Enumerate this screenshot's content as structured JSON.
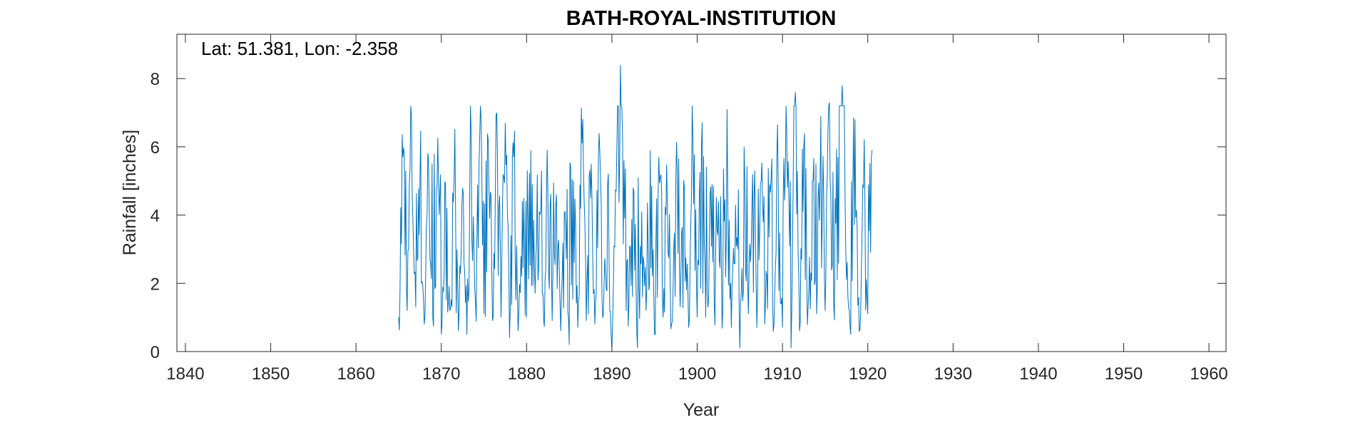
{
  "chart_data": {
    "type": "line",
    "title": "BATH-ROYAL-INSTITUTION",
    "annotation": "Lat: 51.381, Lon: -2.358",
    "xlabel": "Year",
    "ylabel": "Rainfall [inches]",
    "xlim": [
      1839,
      1962
    ],
    "ylim": [
      0,
      9.3
    ],
    "xticks": [
      1840,
      1850,
      1860,
      1870,
      1880,
      1890,
      1900,
      1910,
      1920,
      1930,
      1940,
      1950,
      1960
    ],
    "yticks": [
      0,
      2,
      4,
      6,
      8
    ],
    "line_color": "#0072BD",
    "grid": false,
    "series": [
      {
        "data_start_year": 1865.0,
        "data_end_year": 1920.5,
        "points_per_year": 12,
        "x": [
          1865.0,
          1865.5,
          1866.0,
          1866.5,
          1867.0,
          1867.5,
          1868.0,
          1868.5,
          1869.0,
          1869.5,
          1870.0,
          1870.5,
          1871.0,
          1871.5,
          1872.0,
          1872.5,
          1873.0,
          1873.5,
          1874.0,
          1874.5,
          1875.0,
          1875.5,
          1876.0,
          1876.5,
          1877.0,
          1877.5,
          1878.0,
          1878.5,
          1879.0,
          1879.5,
          1880.0,
          1880.5,
          1881.0,
          1881.5,
          1882.0,
          1882.5,
          1883.0,
          1883.5,
          1884.0,
          1884.5,
          1885.0,
          1885.5,
          1886.0,
          1886.5,
          1887.0,
          1887.5,
          1888.0,
          1888.5,
          1889.0,
          1889.5,
          1890.0,
          1890.5,
          1891.0,
          1891.5,
          1892.0,
          1892.5,
          1893.0,
          1893.5,
          1894.0,
          1894.5,
          1895.0,
          1895.5,
          1896.0,
          1896.5,
          1897.0,
          1897.5,
          1898.0,
          1898.5,
          1899.0,
          1899.5,
          1900.0,
          1900.5,
          1901.0,
          1901.5,
          1902.0,
          1902.5,
          1903.0,
          1903.5,
          1904.0,
          1904.5,
          1905.0,
          1905.5,
          1906.0,
          1906.5,
          1907.0,
          1907.5,
          1908.0,
          1908.5,
          1909.0,
          1909.5,
          1910.0,
          1910.5,
          1911.0,
          1911.5,
          1912.0,
          1912.5,
          1913.0,
          1913.5,
          1914.0,
          1914.5,
          1915.0,
          1915.5,
          1916.0,
          1916.5,
          1917.0,
          1917.5,
          1918.0,
          1918.5,
          1919.0,
          1919.5,
          1920.0,
          1920.5
        ],
        "y": [
          1.0,
          5.7,
          1.2,
          6.9,
          1.3,
          5.0,
          0.8,
          5.6,
          1.0,
          4.9,
          0.5,
          4.9,
          1.2,
          5.1,
          0.6,
          4.8,
          0.5,
          6.4,
          1.5,
          6.3,
          1.1,
          6.2,
          0.9,
          7.0,
          1.0,
          6.7,
          0.4,
          5.7,
          0.6,
          4.4,
          1.0,
          5.9,
          1.7,
          4.1,
          0.9,
          4.6,
          0.9,
          4.6,
          0.6,
          4.1,
          0.2,
          5.0,
          0.7,
          6.1,
          0.9,
          4.5,
          0.8,
          6.4,
          1.1,
          4.9,
          0.1,
          4.7,
          8.4,
          3.9,
          1.4,
          4.8,
          0.1,
          4.1,
          1.2,
          5.9,
          0.5,
          5.7,
          1.0,
          4.3,
          0.8,
          5.1,
          1.3,
          4.8,
          0.7,
          6.3,
          1.0,
          6.0,
          1.0,
          4.6,
          1.4,
          4.4,
          1.2,
          7.1,
          0.7,
          4.3,
          0.1,
          6.0,
          1.1,
          5.2,
          0.7,
          5.0,
          1.4,
          4.9,
          0.8,
          5.0,
          0.7,
          6.3,
          0.1,
          7.6,
          0.6,
          6.0,
          1.3,
          5.0,
          1.1,
          6.9,
          1.2,
          7.3,
          1.4,
          5.7,
          7.8,
          2.1,
          0.5,
          6.8,
          0.6,
          4.8,
          1.1,
          5.9
        ]
      }
    ]
  }
}
